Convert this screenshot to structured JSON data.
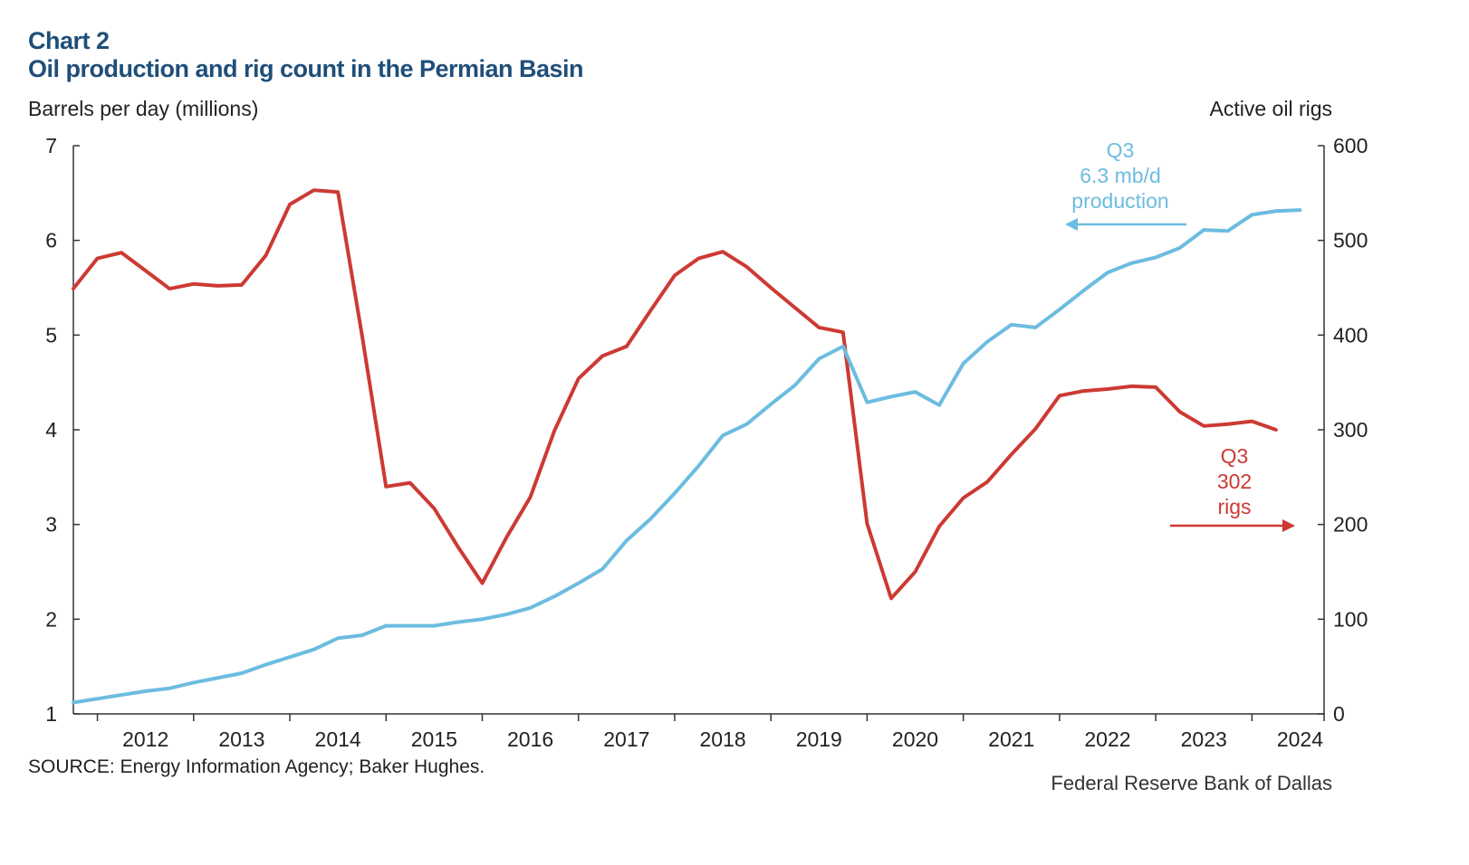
{
  "header": {
    "chart_number": "Chart 2",
    "title": "Oil production and rig count in the Permian Basin"
  },
  "footer": {
    "source": "SOURCE: Energy Information Agency; Baker Hughes.",
    "credit": "Federal Reserve Bank of Dallas"
  },
  "colors": {
    "production": "#6cbce0",
    "rigs": "#cc3a33",
    "axis": "#333333",
    "title": "#1f4e79"
  },
  "chart_data": {
    "type": "line",
    "title": "Oil production and rig count in the Permian Basin",
    "ylabel": "Barrels per day (millions)",
    "y2label": "Active oil rigs",
    "ylim": [
      1,
      7
    ],
    "y2lim": [
      0,
      600
    ],
    "yticks": [
      "1",
      "2",
      "3",
      "4",
      "5",
      "6",
      "7"
    ],
    "y2ticks": [
      "0",
      "100",
      "200",
      "300",
      "400",
      "500",
      "600"
    ],
    "xlim": [
      2011.75,
      2024.75
    ],
    "xticks": [
      "2012",
      "2013",
      "2014",
      "2015",
      "2016",
      "2017",
      "2018",
      "2019",
      "2020",
      "2021",
      "2022",
      "2023",
      "2024"
    ],
    "grid": false,
    "series": [
      {
        "axis": "left",
        "x": [
          2011.75,
          2012.0,
          2012.25,
          2012.5,
          2012.75,
          2013.0,
          2013.25,
          2013.5,
          2013.75,
          2014.0,
          2014.25,
          2014.5,
          2014.75,
          2015.0,
          2015.25,
          2015.5,
          2015.75,
          2016.0,
          2016.25,
          2016.5,
          2016.75,
          2017.0,
          2017.25,
          2017.5,
          2017.75,
          2018.0,
          2018.25,
          2018.5,
          2018.75,
          2019.0,
          2019.25,
          2019.5,
          2019.75,
          2020.0,
          2020.25,
          2020.5,
          2020.75,
          2021.0,
          2021.25,
          2021.5,
          2021.75,
          2022.0,
          2022.25,
          2022.5,
          2022.75,
          2023.0,
          2023.25,
          2023.5,
          2023.75,
          2024.0,
          2024.25,
          2024.5
        ],
        "values": [
          1.12,
          1.16,
          1.2,
          1.24,
          1.27,
          1.33,
          1.38,
          1.43,
          1.52,
          1.6,
          1.68,
          1.8,
          1.83,
          1.93,
          1.93,
          1.93,
          1.97,
          2.0,
          2.05,
          2.12,
          2.24,
          2.38,
          2.53,
          2.83,
          3.06,
          3.33,
          3.62,
          3.94,
          4.06,
          4.27,
          4.47,
          4.75,
          4.88,
          4.29,
          4.35,
          4.4,
          4.26,
          4.7,
          4.93,
          5.11,
          5.08,
          5.27,
          5.47,
          5.66,
          5.76,
          5.82,
          5.92,
          6.11,
          6.1,
          6.27,
          6.31,
          6.32
        ]
      },
      {
        "axis": "right",
        "x": [
          2011.75,
          2012.0,
          2012.25,
          2012.5,
          2012.75,
          2013.0,
          2013.25,
          2013.5,
          2013.75,
          2014.0,
          2014.25,
          2014.5,
          2014.75,
          2015.0,
          2015.25,
          2015.5,
          2015.75,
          2016.0,
          2016.25,
          2016.5,
          2016.75,
          2017.0,
          2017.25,
          2017.5,
          2017.75,
          2018.0,
          2018.25,
          2018.5,
          2018.75,
          2019.0,
          2019.25,
          2019.5,
          2019.75,
          2020.0,
          2020.25,
          2020.5,
          2020.75,
          2021.0,
          2021.25,
          2021.5,
          2021.75,
          2022.0,
          2022.25,
          2022.5,
          2022.75,
          2023.0,
          2023.25,
          2023.5,
          2023.75,
          2024.0,
          2024.25,
          2024.5
        ],
        "values": [
          449,
          481,
          487,
          468,
          449,
          454,
          452,
          453,
          484,
          538,
          553,
          551,
          400,
          240,
          244,
          217,
          176,
          138,
          186,
          229,
          299,
          354,
          378,
          388,
          426,
          463,
          481,
          488,
          472,
          450,
          429,
          408,
          403,
          201,
          122,
          150,
          198,
          228,
          245,
          274,
          301,
          336,
          341,
          343,
          346,
          345,
          319,
          304,
          306,
          309,
          300,
          null
        ]
      }
    ],
    "annotations": [
      {
        "lines": [
          "Q3",
          "6.3 mb/d",
          "production"
        ]
      },
      {
        "lines": [
          "Q3",
          "302",
          "rigs"
        ]
      }
    ]
  }
}
